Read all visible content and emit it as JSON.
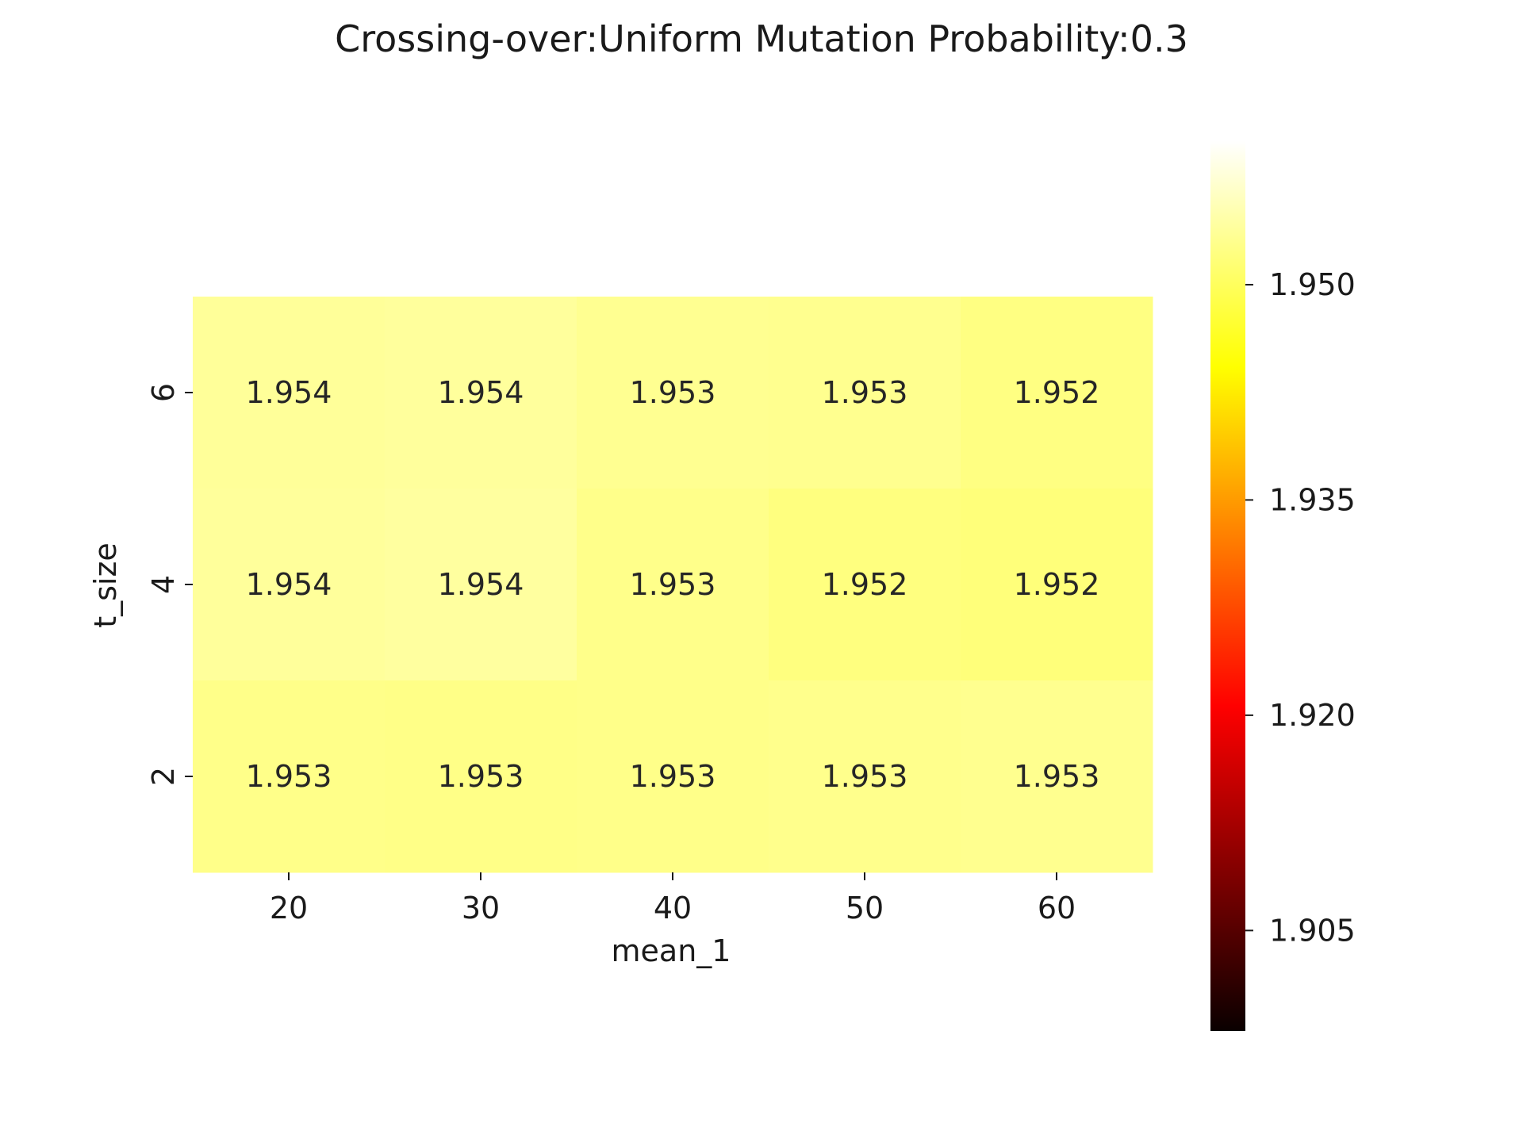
{
  "chart_data": {
    "type": "heatmap",
    "title": "Crossing-over:Uniform Mutation Probability:0.3",
    "xlabel": "mean_1",
    "ylabel": "t_size",
    "x_categories": [
      "20",
      "30",
      "40",
      "50",
      "60"
    ],
    "y_categories": [
      "6",
      "4",
      "2"
    ],
    "values": [
      [
        1.9537,
        1.9539,
        1.9532,
        1.9531,
        1.9523
      ],
      [
        1.9538,
        1.9541,
        1.9528,
        1.9521,
        1.9518
      ],
      [
        1.9527,
        1.9526,
        1.9527,
        1.9529,
        1.9531
      ]
    ],
    "annotations": [
      [
        "1.954",
        "1.954",
        "1.953",
        "1.953",
        "1.952"
      ],
      [
        "1.954",
        "1.954",
        "1.953",
        "1.952",
        "1.952"
      ],
      [
        "1.953",
        "1.953",
        "1.953",
        "1.953",
        "1.953"
      ]
    ],
    "colormap": "hot",
    "colorbar": {
      "range": [
        1.898,
        1.96
      ],
      "ticks": [
        "1.905",
        "1.920",
        "1.935",
        "1.950"
      ],
      "tick_values": [
        1.905,
        1.92,
        1.935,
        1.95
      ]
    }
  }
}
